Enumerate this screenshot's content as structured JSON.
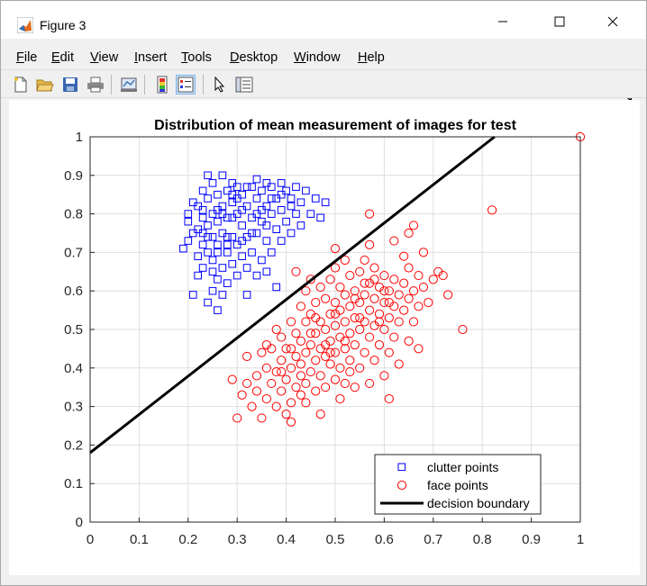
{
  "window": {
    "title": "Figure 3",
    "minimize_icon": "minimize-icon",
    "maximize_icon": "maximize-icon",
    "close_icon": "close-icon"
  },
  "menu": {
    "items": [
      {
        "label": "File",
        "accel": "F",
        "rest": "ile"
      },
      {
        "label": "Edit",
        "accel": "E",
        "rest": "dit"
      },
      {
        "label": "View",
        "accel": "V",
        "rest": "iew"
      },
      {
        "label": "Insert",
        "accel": "I",
        "rest": "nsert"
      },
      {
        "label": "Tools",
        "accel": "T",
        "rest": "ools"
      },
      {
        "label": "Desktop",
        "accel": "D",
        "rest": "esktop"
      },
      {
        "label": "Window",
        "accel": "W",
        "rest": "indow"
      },
      {
        "label": "Help",
        "accel": "H",
        "rest": "elp"
      }
    ],
    "dock_icon": "dock-arrow-icon"
  },
  "toolbar": {
    "icons": [
      "new-figure-icon",
      "open-file-icon",
      "save-icon",
      "print-icon",
      "link-plot-icon",
      "colorbar-icon",
      "legend-icon",
      "edit-plot-icon",
      "property-inspector-icon"
    ]
  },
  "colors": {
    "clutter": "#0000ff",
    "face": "#ff0000",
    "boundary": "#000000",
    "grid": "#dedede"
  },
  "chart_data": {
    "type": "scatter",
    "title": "Distribution of mean measurement of images for test",
    "xlabel": "",
    "ylabel": "",
    "xlim": [
      0,
      1
    ],
    "ylim": [
      0,
      1
    ],
    "xticks": [
      "0",
      "0.1",
      "0.2",
      "0.3",
      "0.4",
      "0.5",
      "0.6",
      "0.7",
      "0.8",
      "0.9",
      "1"
    ],
    "yticks": [
      "0",
      "0.1",
      "0.2",
      "0.3",
      "0.4",
      "0.5",
      "0.6",
      "0.7",
      "0.8",
      "0.9",
      "1"
    ],
    "grid": true,
    "legend_position": "bottom-right",
    "series": [
      {
        "name": "clutter points",
        "marker": "square",
        "color": "#0000ff",
        "points": [
          [
            0.19,
            0.71
          ],
          [
            0.2,
            0.78
          ],
          [
            0.2,
            0.8
          ],
          [
            0.21,
            0.59
          ],
          [
            0.21,
            0.75
          ],
          [
            0.21,
            0.83
          ],
          [
            0.22,
            0.64
          ],
          [
            0.22,
            0.76
          ],
          [
            0.22,
            0.82
          ],
          [
            0.23,
            0.66
          ],
          [
            0.23,
            0.72
          ],
          [
            0.23,
            0.79
          ],
          [
            0.23,
            0.86
          ],
          [
            0.24,
            0.57
          ],
          [
            0.24,
            0.7
          ],
          [
            0.24,
            0.77
          ],
          [
            0.24,
            0.84
          ],
          [
            0.24,
            0.9
          ],
          [
            0.25,
            0.6
          ],
          [
            0.25,
            0.68
          ],
          [
            0.25,
            0.74
          ],
          [
            0.25,
            0.8
          ],
          [
            0.25,
            0.88
          ],
          [
            0.26,
            0.55
          ],
          [
            0.26,
            0.63
          ],
          [
            0.26,
            0.72
          ],
          [
            0.26,
            0.78
          ],
          [
            0.26,
            0.85
          ],
          [
            0.27,
            0.59
          ],
          [
            0.27,
            0.66
          ],
          [
            0.27,
            0.75
          ],
          [
            0.27,
            0.82
          ],
          [
            0.27,
            0.9
          ],
          [
            0.28,
            0.62
          ],
          [
            0.28,
            0.7
          ],
          [
            0.28,
            0.79
          ],
          [
            0.28,
            0.86
          ],
          [
            0.29,
            0.67
          ],
          [
            0.29,
            0.74
          ],
          [
            0.29,
            0.83
          ],
          [
            0.29,
            0.88
          ],
          [
            0.3,
            0.64
          ],
          [
            0.3,
            0.72
          ],
          [
            0.3,
            0.8
          ],
          [
            0.3,
            0.87
          ],
          [
            0.31,
            0.69
          ],
          [
            0.31,
            0.77
          ],
          [
            0.31,
            0.85
          ],
          [
            0.32,
            0.59
          ],
          [
            0.32,
            0.66
          ],
          [
            0.32,
            0.74
          ],
          [
            0.32,
            0.82
          ],
          [
            0.33,
            0.7
          ],
          [
            0.33,
            0.79
          ],
          [
            0.33,
            0.87
          ],
          [
            0.34,
            0.64
          ],
          [
            0.34,
            0.75
          ],
          [
            0.34,
            0.84
          ],
          [
            0.34,
            0.89
          ],
          [
            0.35,
            0.68
          ],
          [
            0.35,
            0.78
          ],
          [
            0.35,
            0.86
          ],
          [
            0.36,
            0.65
          ],
          [
            0.36,
            0.73
          ],
          [
            0.36,
            0.82
          ],
          [
            0.36,
            0.88
          ],
          [
            0.37,
            0.7
          ],
          [
            0.37,
            0.8
          ],
          [
            0.37,
            0.87
          ],
          [
            0.38,
            0.61
          ],
          [
            0.38,
            0.76
          ],
          [
            0.38,
            0.84
          ],
          [
            0.39,
            0.73
          ],
          [
            0.39,
            0.81
          ],
          [
            0.39,
            0.88
          ],
          [
            0.4,
            0.78
          ],
          [
            0.4,
            0.86
          ],
          [
            0.41,
            0.75
          ],
          [
            0.41,
            0.84
          ],
          [
            0.42,
            0.8
          ],
          [
            0.42,
            0.87
          ],
          [
            0.43,
            0.77
          ],
          [
            0.43,
            0.83
          ],
          [
            0.44,
            0.86
          ],
          [
            0.45,
            0.8
          ],
          [
            0.46,
            0.84
          ],
          [
            0.47,
            0.79
          ],
          [
            0.48,
            0.83
          ],
          [
            0.2,
            0.73
          ],
          [
            0.22,
            0.69
          ],
          [
            0.23,
            0.81
          ],
          [
            0.25,
            0.65
          ],
          [
            0.26,
            0.81
          ],
          [
            0.28,
            0.74
          ],
          [
            0.29,
            0.79
          ],
          [
            0.31,
            0.81
          ],
          [
            0.33,
            0.75
          ],
          [
            0.35,
            0.81
          ],
          [
            0.37,
            0.84
          ],
          [
            0.31,
            0.73
          ],
          [
            0.27,
            0.8
          ],
          [
            0.24,
            0.74
          ],
          [
            0.3,
            0.84
          ],
          [
            0.34,
            0.8
          ],
          [
            0.36,
            0.77
          ],
          [
            0.29,
            0.85
          ],
          [
            0.32,
            0.87
          ],
          [
            0.39,
            0.85
          ],
          [
            0.41,
            0.82
          ],
          [
            0.28,
            0.72
          ],
          [
            0.26,
            0.7
          ],
          [
            0.23,
            0.75
          ]
        ]
      },
      {
        "name": "face points",
        "marker": "circle",
        "color": "#ff0000",
        "points": [
          [
            0.29,
            0.37
          ],
          [
            0.3,
            0.27
          ],
          [
            0.31,
            0.33
          ],
          [
            0.32,
            0.36
          ],
          [
            0.33,
            0.3
          ],
          [
            0.34,
            0.34
          ],
          [
            0.34,
            0.38
          ],
          [
            0.35,
            0.44
          ],
          [
            0.35,
            0.27
          ],
          [
            0.36,
            0.32
          ],
          [
            0.36,
            0.4
          ],
          [
            0.37,
            0.36
          ],
          [
            0.37,
            0.45
          ],
          [
            0.38,
            0.3
          ],
          [
            0.38,
            0.39
          ],
          [
            0.38,
            0.5
          ],
          [
            0.39,
            0.34
          ],
          [
            0.39,
            0.42
          ],
          [
            0.39,
            0.48
          ],
          [
            0.4,
            0.28
          ],
          [
            0.4,
            0.37
          ],
          [
            0.4,
            0.45
          ],
          [
            0.41,
            0.31
          ],
          [
            0.41,
            0.4
          ],
          [
            0.41,
            0.52
          ],
          [
            0.41,
            0.26
          ],
          [
            0.42,
            0.35
          ],
          [
            0.42,
            0.43
          ],
          [
            0.42,
            0.49
          ],
          [
            0.42,
            0.65
          ],
          [
            0.43,
            0.33
          ],
          [
            0.43,
            0.41
          ],
          [
            0.43,
            0.47
          ],
          [
            0.43,
            0.56
          ],
          [
            0.44,
            0.36
          ],
          [
            0.44,
            0.44
          ],
          [
            0.44,
            0.52
          ],
          [
            0.44,
            0.6
          ],
          [
            0.45,
            0.39
          ],
          [
            0.45,
            0.46
          ],
          [
            0.45,
            0.54
          ],
          [
            0.45,
            0.63
          ],
          [
            0.46,
            0.34
          ],
          [
            0.46,
            0.42
          ],
          [
            0.46,
            0.49
          ],
          [
            0.46,
            0.57
          ],
          [
            0.47,
            0.28
          ],
          [
            0.47,
            0.38
          ],
          [
            0.47,
            0.45
          ],
          [
            0.47,
            0.52
          ],
          [
            0.47,
            0.61
          ],
          [
            0.48,
            0.35
          ],
          [
            0.48,
            0.43
          ],
          [
            0.48,
            0.5
          ],
          [
            0.48,
            0.58
          ],
          [
            0.49,
            0.41
          ],
          [
            0.49,
            0.47
          ],
          [
            0.49,
            0.54
          ],
          [
            0.49,
            0.63
          ],
          [
            0.5,
            0.37
          ],
          [
            0.5,
            0.44
          ],
          [
            0.5,
            0.51
          ],
          [
            0.5,
            0.57
          ],
          [
            0.5,
            0.66
          ],
          [
            0.5,
            0.71
          ],
          [
            0.51,
            0.32
          ],
          [
            0.51,
            0.4
          ],
          [
            0.51,
            0.48
          ],
          [
            0.51,
            0.55
          ],
          [
            0.51,
            0.61
          ],
          [
            0.52,
            0.36
          ],
          [
            0.52,
            0.45
          ],
          [
            0.52,
            0.52
          ],
          [
            0.52,
            0.59
          ],
          [
            0.52,
            0.68
          ],
          [
            0.53,
            0.42
          ],
          [
            0.53,
            0.49
          ],
          [
            0.53,
            0.56
          ],
          [
            0.53,
            0.64
          ],
          [
            0.54,
            0.35
          ],
          [
            0.54,
            0.46
          ],
          [
            0.54,
            0.53
          ],
          [
            0.54,
            0.6
          ],
          [
            0.55,
            0.4
          ],
          [
            0.55,
            0.5
          ],
          [
            0.55,
            0.57
          ],
          [
            0.55,
            0.65
          ],
          [
            0.56,
            0.44
          ],
          [
            0.56,
            0.52
          ],
          [
            0.56,
            0.59
          ],
          [
            0.56,
            0.68
          ],
          [
            0.57,
            0.36
          ],
          [
            0.57,
            0.48
          ],
          [
            0.57,
            0.55
          ],
          [
            0.57,
            0.62
          ],
          [
            0.57,
            0.72
          ],
          [
            0.57,
            0.8
          ],
          [
            0.58,
            0.42
          ],
          [
            0.58,
            0.51
          ],
          [
            0.58,
            0.58
          ],
          [
            0.58,
            0.66
          ],
          [
            0.59,
            0.46
          ],
          [
            0.59,
            0.54
          ],
          [
            0.59,
            0.61
          ],
          [
            0.6,
            0.38
          ],
          [
            0.6,
            0.5
          ],
          [
            0.6,
            0.57
          ],
          [
            0.6,
            0.64
          ],
          [
            0.61,
            0.32
          ],
          [
            0.61,
            0.44
          ],
          [
            0.61,
            0.53
          ],
          [
            0.61,
            0.6
          ],
          [
            0.62,
            0.48
          ],
          [
            0.62,
            0.56
          ],
          [
            0.62,
            0.63
          ],
          [
            0.62,
            0.73
          ],
          [
            0.63,
            0.41
          ],
          [
            0.63,
            0.52
          ],
          [
            0.63,
            0.59
          ],
          [
            0.64,
            0.55
          ],
          [
            0.64,
            0.62
          ],
          [
            0.64,
            0.69
          ],
          [
            0.65,
            0.47
          ],
          [
            0.65,
            0.58
          ],
          [
            0.65,
            0.66
          ],
          [
            0.65,
            0.75
          ],
          [
            0.66,
            0.52
          ],
          [
            0.66,
            0.6
          ],
          [
            0.66,
            0.77
          ],
          [
            0.67,
            0.45
          ],
          [
            0.67,
            0.56
          ],
          [
            0.67,
            0.64
          ],
          [
            0.68,
            0.61
          ],
          [
            0.68,
            0.7
          ],
          [
            0.69,
            0.57
          ],
          [
            0.7,
            0.63
          ],
          [
            0.71,
            0.65
          ],
          [
            0.72,
            0.64
          ],
          [
            0.73,
            0.59
          ],
          [
            0.76,
            0.5
          ],
          [
            0.82,
            0.81
          ],
          [
            1.0,
            1.0
          ],
          [
            0.32,
            0.43
          ],
          [
            0.36,
            0.46
          ],
          [
            0.39,
            0.39
          ],
          [
            0.43,
            0.38
          ],
          [
            0.46,
            0.53
          ],
          [
            0.49,
            0.44
          ],
          [
            0.52,
            0.47
          ],
          [
            0.55,
            0.53
          ],
          [
            0.58,
            0.63
          ],
          [
            0.61,
            0.57
          ],
          [
            0.44,
            0.31
          ],
          [
            0.48,
            0.46
          ],
          [
            0.53,
            0.39
          ],
          [
            0.56,
            0.62
          ],
          [
            0.59,
            0.52
          ],
          [
            0.41,
            0.45
          ],
          [
            0.45,
            0.49
          ],
          [
            0.5,
            0.54
          ],
          [
            0.54,
            0.58
          ],
          [
            0.6,
            0.6
          ]
        ]
      }
    ],
    "boundary": {
      "name": "decision boundary",
      "x": [
        0,
        0.825
      ],
      "y": [
        0.18,
        1.0
      ]
    }
  }
}
